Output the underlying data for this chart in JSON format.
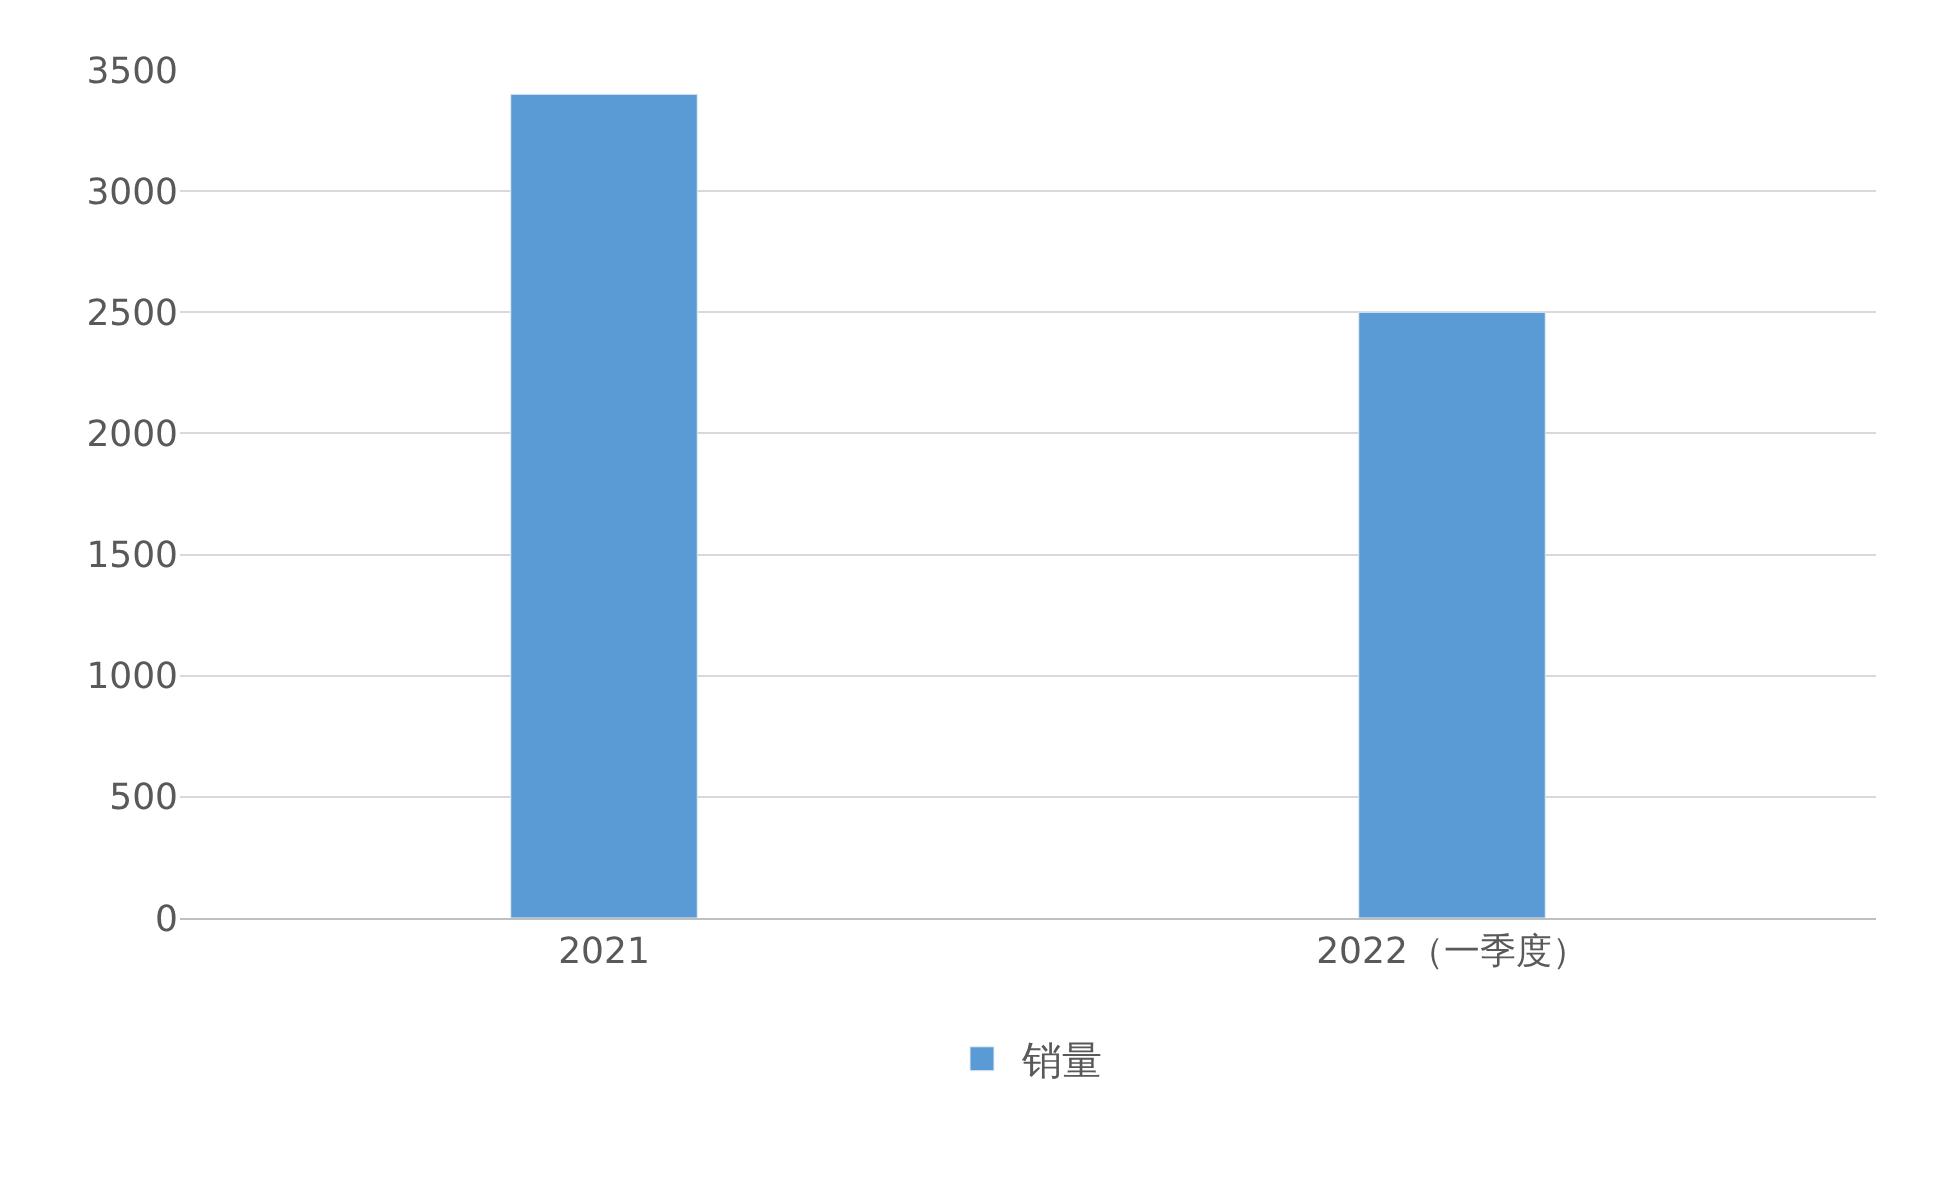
{
  "chart_data": {
    "type": "bar",
    "categories": [
      "2021",
      "2022（一季度）"
    ],
    "series": [
      {
        "name": "销量",
        "color": "#5b9bd5",
        "values": [
          3400,
          2500
        ]
      }
    ],
    "ylim": [
      0,
      3500
    ],
    "yticks": [
      0,
      500,
      1000,
      1500,
      2000,
      2500,
      3000,
      3500
    ],
    "grid": "y",
    "legend": "bottom"
  }
}
